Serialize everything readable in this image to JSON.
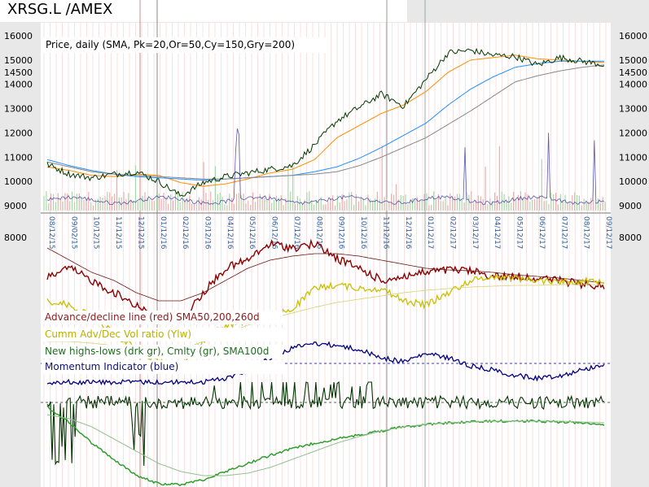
{
  "title": "XRSG.L /AMEX",
  "price_legend": "Price, daily (SMA, Pk=20,Or=50,Cy=150,Gry=200)",
  "indicator_legend": [
    {
      "text": "Advance/decline line (red) SMA50,200,260d",
      "color": "#8b1a1a"
    },
    {
      "text": "Cumm Adv/Dec Vol ratio (Ylw)",
      "color": "#b8b000"
    },
    {
      "text": "New highs-lows (drk gr), Cmlty (gr), SMA100d",
      "color": "#1f6e1f"
    },
    {
      "text": "Momentum Indicator (blue)",
      "color": "#10106e"
    }
  ],
  "indicator_top_label": "8000",
  "colors": {
    "price": "#003a00",
    "sma20": "#e08080",
    "sma50": "#ff8c00",
    "sma150": "#1e90ff",
    "sma200": "#888888",
    "ad_line": "#8b0000",
    "ad_sma": "#6b1414",
    "ylw": "#c8c000",
    "momentum": "#000080",
    "nh_nl": "#003300",
    "cmlty": "#2e9e2e",
    "sma100": "#90c090",
    "grid_red": "#f0a0a0"
  },
  "chart_data": {
    "type": "line",
    "x": [
      "08/2015",
      "09/2015",
      "10/2015",
      "11/2015",
      "12/2015",
      "01/2016",
      "02/2016",
      "03/2016",
      "04/2016",
      "05/2016",
      "06/2016",
      "07/2016",
      "08/2016",
      "09/2016",
      "10/2016",
      "11/2016",
      "12/2016",
      "01/2017",
      "02/2017",
      "03/2017",
      "04/2017",
      "05/2017",
      "06/2017",
      "07/2017",
      "08/2017",
      "09/2017"
    ],
    "x_tick_labels": [
      "08/12/15",
      "09/02/15",
      "10/12/15",
      "11/12/15",
      "12/12/15",
      "01/12/16",
      "02/12/16",
      "03/12/16",
      "04/12/16",
      "05/12/16",
      "06/12/16",
      "07/12/16",
      "08/12/16",
      "09/12/16",
      "10/12/16",
      "11/12/16",
      "12/12/16",
      "01/12/17",
      "02/12/17",
      "03/12/17",
      "04/12/17",
      "05/12/17",
      "06/12/17",
      "07/12/17",
      "08/12/17",
      "09/12/17"
    ],
    "y_ticks": [
      9000,
      10000,
      11000,
      12000,
      13000,
      14000,
      14500,
      15000,
      16000
    ],
    "ylim": [
      8800,
      16200
    ],
    "series": [
      {
        "name": "Price",
        "values": [
          10700,
          10300,
          10150,
          10300,
          10400,
          10000,
          9400,
          9950,
          10200,
          10350,
          10500,
          10650,
          11500,
          12500,
          13050,
          13600,
          13100,
          14200,
          15300,
          15400,
          15200,
          15150,
          14800,
          15100,
          14950,
          14800
        ]
      },
      {
        "name": "SMA50",
        "values": [
          10600,
          10450,
          10250,
          10200,
          10300,
          10250,
          9950,
          9800,
          9900,
          10100,
          10350,
          10500,
          10900,
          11800,
          12300,
          12800,
          13150,
          13700,
          14500,
          15000,
          15100,
          15200,
          15050,
          15000,
          14950,
          14900
        ]
      },
      {
        "name": "SMA150",
        "values": [
          10900,
          10650,
          10450,
          10300,
          10200,
          10150,
          10100,
          10050,
          10100,
          10150,
          10200,
          10250,
          10400,
          10600,
          10950,
          11400,
          11900,
          12400,
          13150,
          13800,
          14300,
          14700,
          14850,
          14950,
          14950,
          14950
        ]
      },
      {
        "name": "SMA200",
        "values": [
          10800,
          10600,
          10400,
          10300,
          10250,
          10200,
          10150,
          10100,
          10100,
          10150,
          10200,
          10250,
          10300,
          10400,
          10650,
          11000,
          11400,
          11800,
          12350,
          12900,
          13500,
          14100,
          14350,
          14550,
          14700,
          14800
        ]
      }
    ]
  }
}
